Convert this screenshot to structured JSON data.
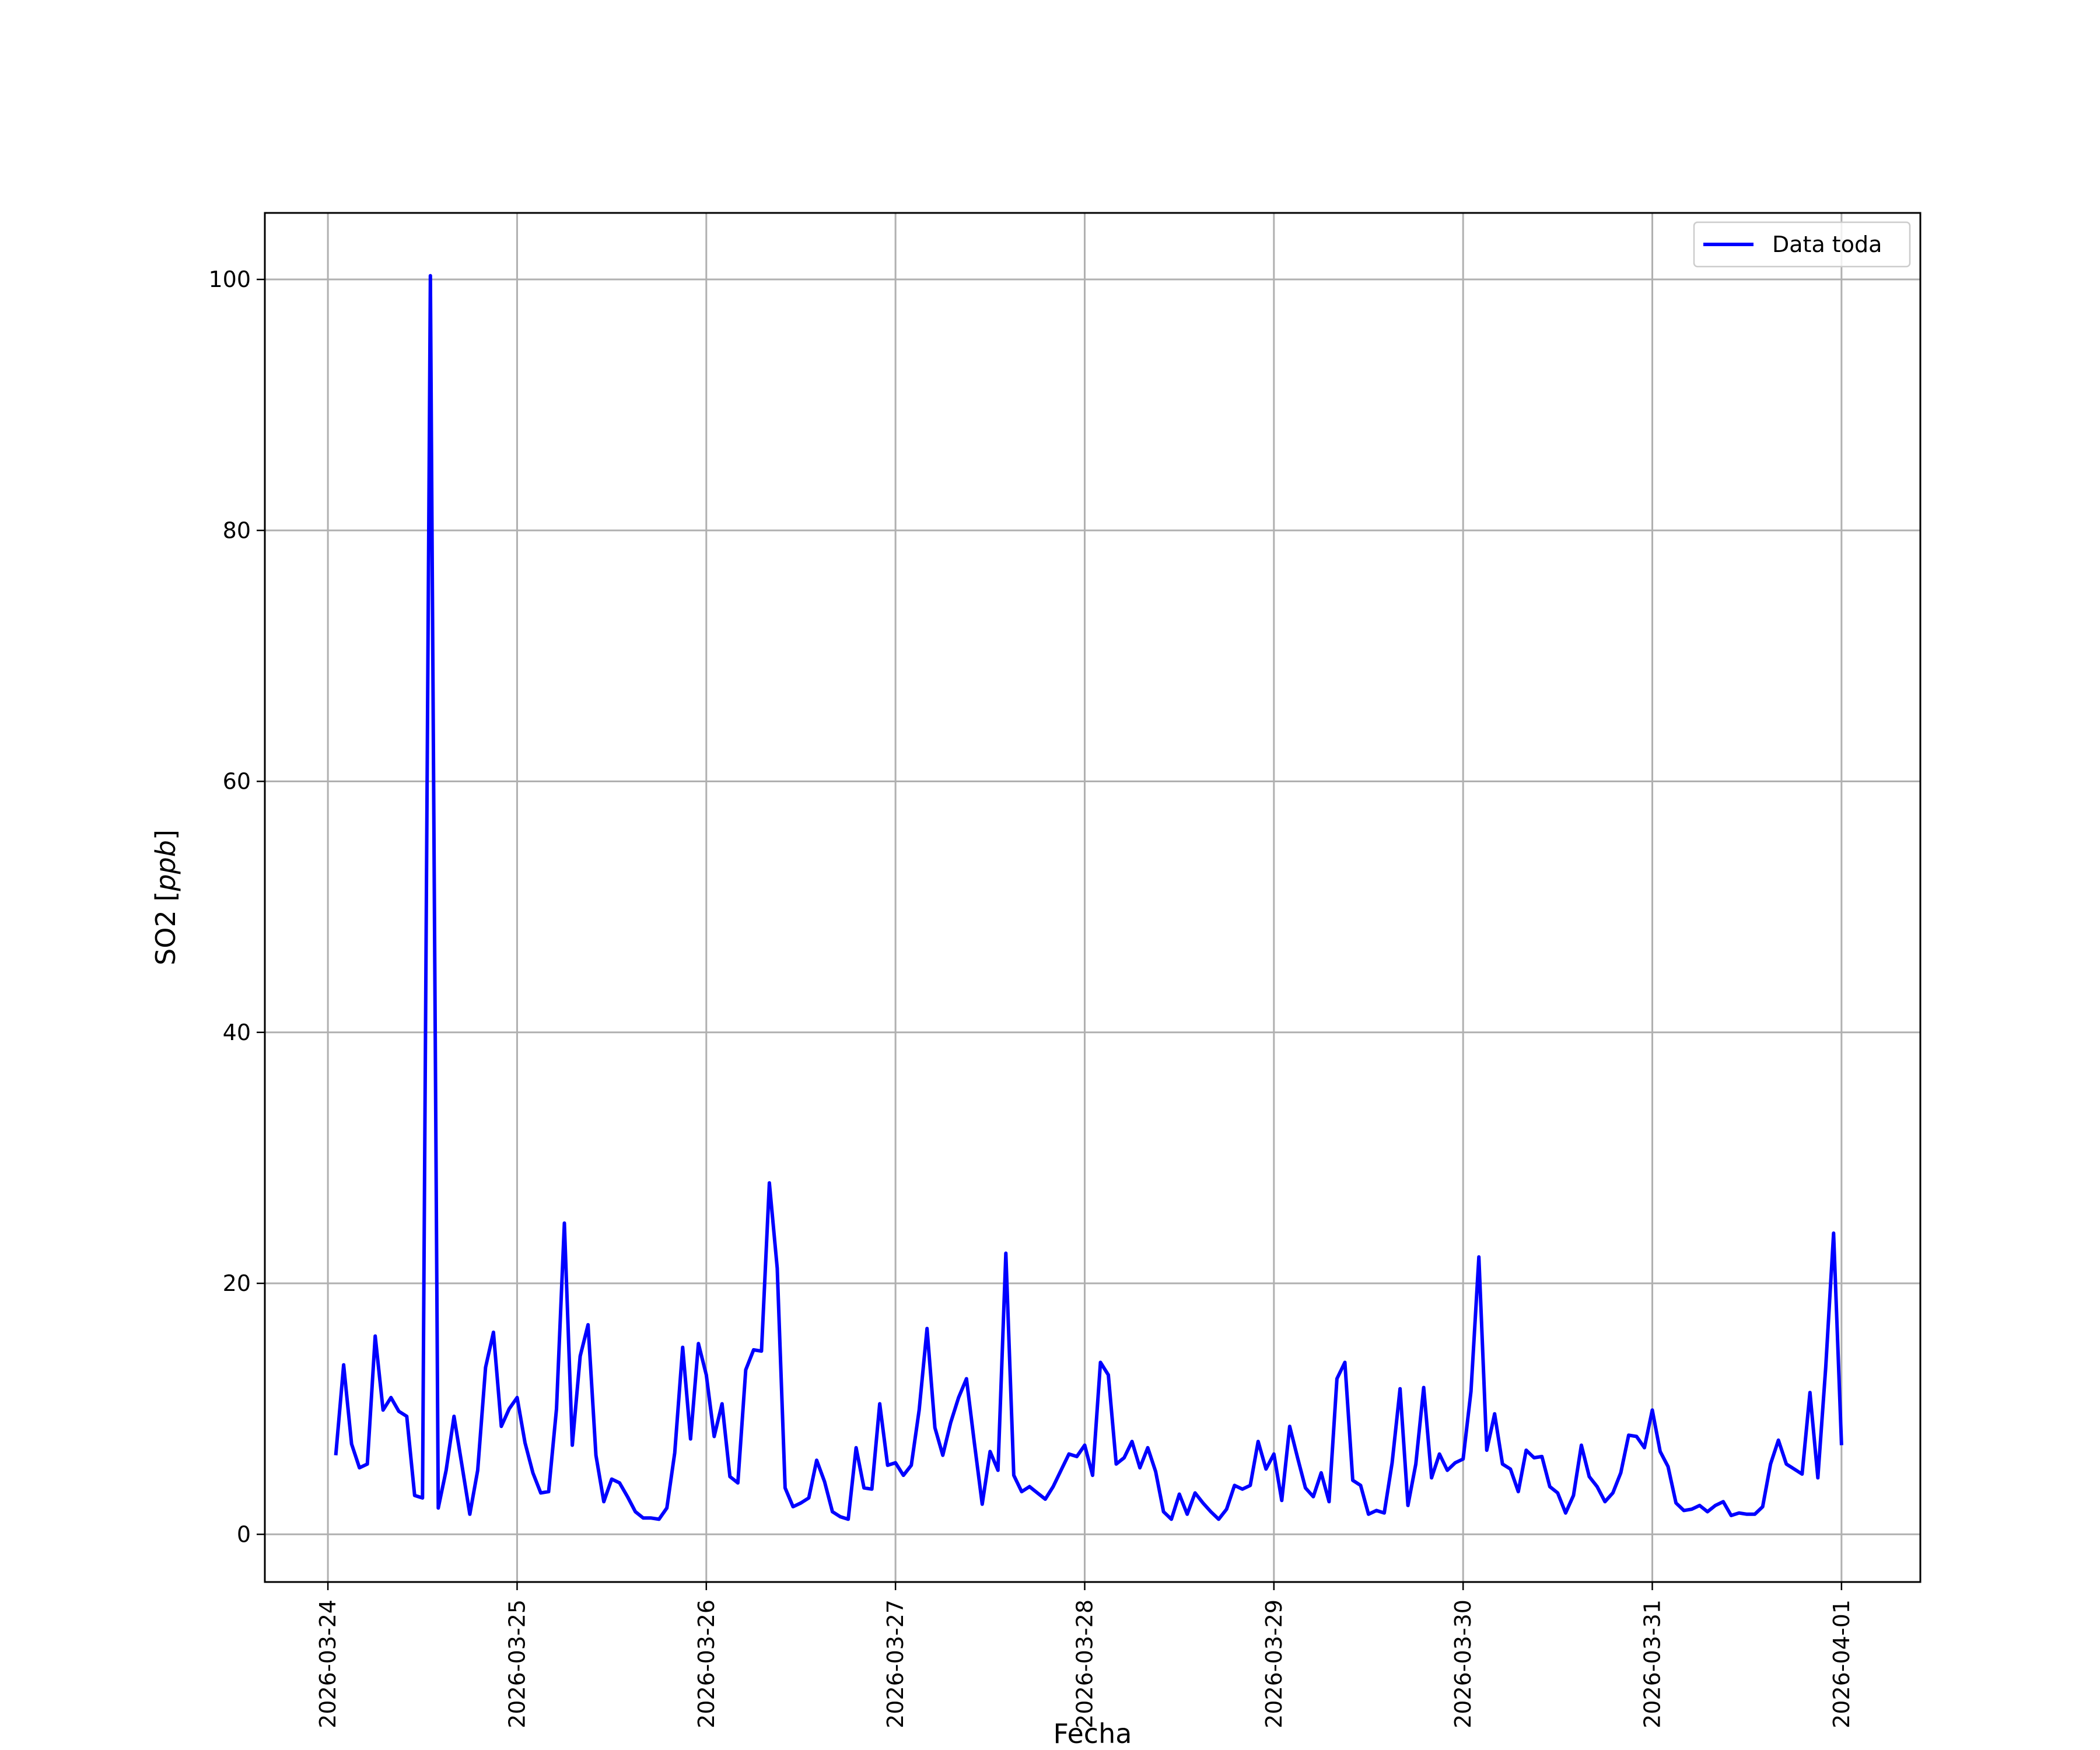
{
  "chart_data": {
    "type": "line",
    "xlabel": "Fecha",
    "ylabel": "SO2 [",
    "ylabel_unit": "ppb",
    "ylabel_close": "]",
    "xlim": [
      "2026-03-23T16:00",
      "2026-04-01T10:00"
    ],
    "ylim": [
      -3.8,
      105.3
    ],
    "grid": true,
    "legend_position": "top-right",
    "x_ticks": [
      "2026-03-24",
      "2026-03-25",
      "2026-03-26",
      "2026-03-27",
      "2026-03-28",
      "2026-03-29",
      "2026-03-30",
      "2026-03-31",
      "2026-04-01"
    ],
    "y_ticks": [
      0,
      20,
      40,
      60,
      80,
      100
    ],
    "y_tick_labels": [
      "0",
      "20",
      "40",
      "60",
      "80",
      "100"
    ],
    "series": [
      {
        "name": "Data toda",
        "color": "#0000ff",
        "start": "2026-03-24T01:00",
        "step_hours": 1,
        "values": [
          6.3,
          13.5,
          7.2,
          5.3,
          5.6,
          15.8,
          9.9,
          10.9,
          9.8,
          9.4,
          3.1,
          2.9,
          100.3,
          2.1,
          5.1,
          9.4,
          5.5,
          1.6,
          5.1,
          13.3,
          16.1,
          8.6,
          10.0,
          10.9,
          7.3,
          4.9,
          3.3,
          3.4,
          10.0,
          24.8,
          7.1,
          14.2,
          16.7,
          6.3,
          2.6,
          4.4,
          4.1,
          3.0,
          1.8,
          1.3,
          1.3,
          1.2,
          2.1,
          6.5,
          14.9,
          7.6,
          15.2,
          12.7,
          7.8,
          10.4,
          4.6,
          4.1,
          13.1,
          14.7,
          14.6,
          28.0,
          21.2,
          3.7,
          2.2,
          2.5,
          2.9,
          5.9,
          4.2,
          1.8,
          1.4,
          1.2,
          6.9,
          3.7,
          3.6,
          10.4,
          5.5,
          5.7,
          4.7,
          5.5,
          9.9,
          16.4,
          8.5,
          6.3,
          8.9,
          10.9,
          12.4,
          7.3,
          2.4,
          6.6,
          5.1,
          22.4,
          4.7,
          3.4,
          3.8,
          3.3,
          2.8,
          3.8,
          5.1,
          6.4,
          6.2,
          7.1,
          4.7,
          13.7,
          12.7,
          5.6,
          6.1,
          7.4,
          5.3,
          6.9,
          5.0,
          1.8,
          1.2,
          3.2,
          1.6,
          3.3,
          2.5,
          1.8,
          1.2,
          2.0,
          3.9,
          3.6,
          3.9,
          7.4,
          5.2,
          6.4,
          2.7,
          8.6,
          6.1,
          3.7,
          3.0,
          4.9,
          2.6,
          12.4,
          13.7,
          4.3,
          3.9,
          1.6,
          1.9,
          1.7,
          5.7,
          11.6,
          2.3,
          5.6,
          11.7,
          4.5,
          6.4,
          5.1,
          5.7,
          6.0,
          11.4,
          22.1,
          6.7,
          9.6,
          5.6,
          5.2,
          3.4,
          6.7,
          6.1,
          6.2,
          3.8,
          3.3,
          1.7,
          3.1,
          7.1,
          4.6,
          3.8,
          2.6,
          3.3,
          4.9,
          7.9,
          7.8,
          6.9,
          9.9,
          6.6,
          5.4,
          2.5,
          1.9,
          2.0,
          2.3,
          1.8,
          2.3,
          2.6,
          1.5,
          1.7,
          1.6,
          1.6,
          2.2,
          5.6,
          7.5,
          5.6,
          5.2,
          4.8,
          11.3,
          4.5,
          13.3,
          24.0,
          7.1
        ]
      }
    ]
  }
}
